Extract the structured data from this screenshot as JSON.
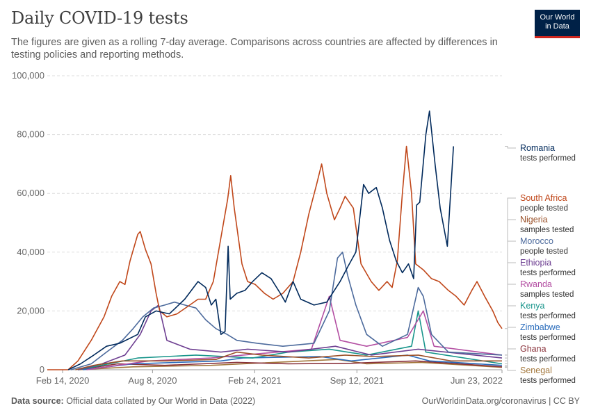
{
  "header": {
    "title": "Daily COVID-19 tests",
    "subtitle": "The figures are given as a rolling 7-day average. Comparisons across countries are affected by differences in testing policies and reporting methods."
  },
  "logo": {
    "line1": "Our World",
    "line2": "in Data",
    "bg_color": "#002147",
    "accent_color": "#ce261e"
  },
  "footer": {
    "source_label": "Data source:",
    "source_text": " Official data collated by Our World in Data (2022)",
    "right_text": "OurWorldinData.org/coronavirus | CC BY"
  },
  "chart_data": {
    "type": "line",
    "title": "Daily COVID-19 tests",
    "ylim": [
      0,
      100000
    ],
    "y_ticks": [
      0,
      20000,
      40000,
      60000,
      80000,
      100000
    ],
    "y_tick_labels": [
      "0",
      "20,000",
      "40,000",
      "60,000",
      "80,000",
      "100,000"
    ],
    "x_range": [
      "2020-01-15",
      "2022-06-23"
    ],
    "x_ticks": [
      {
        "date": "2020-02-14",
        "label": "Feb 14, 2020"
      },
      {
        "date": "2020-08-08",
        "label": "Aug 8, 2020"
      },
      {
        "date": "2021-02-24",
        "label": "Feb 24, 2021"
      },
      {
        "date": "2021-09-12",
        "label": "Sep 12, 2021"
      },
      {
        "date": "2022-06-23",
        "label": "Jun 23, 2022"
      }
    ],
    "series": [
      {
        "name": "Romania",
        "unit": "tests performed",
        "color": "#00295b",
        "points": [
          [
            "2020-02-25",
            0
          ],
          [
            "2020-03-20",
            2000
          ],
          [
            "2020-04-15",
            5000
          ],
          [
            "2020-05-10",
            8000
          ],
          [
            "2020-06-05",
            9000
          ],
          [
            "2020-07-10",
            12000
          ],
          [
            "2020-07-25",
            18000
          ],
          [
            "2020-08-15",
            20000
          ],
          [
            "2020-09-10",
            19000
          ],
          [
            "2020-10-10",
            24000
          ],
          [
            "2020-11-05",
            30000
          ],
          [
            "2020-11-20",
            28000
          ],
          [
            "2020-12-01",
            22000
          ],
          [
            "2020-12-10",
            24000
          ],
          [
            "2020-12-20",
            12000
          ],
          [
            "2020-12-28",
            13000
          ],
          [
            "2021-01-03",
            42000
          ],
          [
            "2021-01-07",
            24000
          ],
          [
            "2021-01-20",
            26000
          ],
          [
            "2021-02-05",
            27000
          ],
          [
            "2021-02-20",
            30000
          ],
          [
            "2021-03-10",
            33000
          ],
          [
            "2021-03-28",
            31000
          ],
          [
            "2021-04-15",
            26000
          ],
          [
            "2021-04-25",
            23000
          ],
          [
            "2021-05-10",
            30000
          ],
          [
            "2021-05-25",
            24000
          ],
          [
            "2021-06-20",
            22000
          ],
          [
            "2021-07-15",
            23000
          ],
          [
            "2021-08-10",
            30000
          ],
          [
            "2021-08-25",
            35000
          ],
          [
            "2021-09-10",
            40000
          ],
          [
            "2021-09-25",
            63000
          ],
          [
            "2021-10-05",
            60000
          ],
          [
            "2021-10-20",
            62000
          ],
          [
            "2021-11-01",
            55000
          ],
          [
            "2021-11-15",
            44000
          ],
          [
            "2021-11-28",
            37000
          ],
          [
            "2021-12-10",
            33000
          ],
          [
            "2021-12-22",
            36000
          ],
          [
            "2022-01-01",
            31000
          ],
          [
            "2022-01-07",
            56000
          ],
          [
            "2022-01-13",
            57000
          ],
          [
            "2022-01-25",
            80000
          ],
          [
            "2022-02-01",
            88000
          ],
          [
            "2022-02-12",
            70000
          ],
          [
            "2022-02-22",
            55000
          ],
          [
            "2022-03-08",
            42000
          ],
          [
            "2022-03-20",
            76000
          ]
        ]
      },
      {
        "name": "South Africa",
        "unit": "people tested",
        "color": "#c0471a",
        "points": [
          [
            "2020-01-15",
            0
          ],
          [
            "2020-02-25",
            0
          ],
          [
            "2020-03-15",
            3000
          ],
          [
            "2020-04-10",
            10000
          ],
          [
            "2020-05-05",
            18000
          ],
          [
            "2020-05-20",
            25000
          ],
          [
            "2020-06-05",
            30000
          ],
          [
            "2020-06-15",
            29000
          ],
          [
            "2020-06-25",
            37000
          ],
          [
            "2020-07-10",
            46000
          ],
          [
            "2020-07-15",
            47000
          ],
          [
            "2020-07-25",
            41000
          ],
          [
            "2020-08-05",
            36000
          ],
          [
            "2020-08-15",
            26000
          ],
          [
            "2020-08-22",
            20000
          ],
          [
            "2020-09-05",
            18000
          ],
          [
            "2020-09-25",
            19000
          ],
          [
            "2020-10-20",
            22000
          ],
          [
            "2020-11-05",
            24000
          ],
          [
            "2020-11-20",
            24000
          ],
          [
            "2020-12-05",
            30000
          ],
          [
            "2020-12-20",
            45000
          ],
          [
            "2021-01-02",
            58000
          ],
          [
            "2021-01-08",
            66000
          ],
          [
            "2021-01-15",
            55000
          ],
          [
            "2021-01-30",
            36000
          ],
          [
            "2021-02-10",
            30000
          ],
          [
            "2021-02-25",
            29000
          ],
          [
            "2021-03-15",
            26000
          ],
          [
            "2021-04-01",
            24000
          ],
          [
            "2021-04-20",
            26000
          ],
          [
            "2021-05-10",
            30000
          ],
          [
            "2021-05-25",
            40000
          ],
          [
            "2021-06-10",
            53000
          ],
          [
            "2021-06-25",
            63000
          ],
          [
            "2021-07-05",
            70000
          ],
          [
            "2021-07-15",
            60000
          ],
          [
            "2021-07-30",
            51000
          ],
          [
            "2021-08-10",
            55000
          ],
          [
            "2021-08-20",
            59000
          ],
          [
            "2021-09-05",
            55000
          ],
          [
            "2021-09-20",
            36000
          ],
          [
            "2021-10-10",
            30000
          ],
          [
            "2021-10-25",
            27000
          ],
          [
            "2021-11-10",
            30000
          ],
          [
            "2021-11-20",
            28000
          ],
          [
            "2021-11-30",
            37000
          ],
          [
            "2021-12-10",
            60000
          ],
          [
            "2021-12-18",
            76000
          ],
          [
            "2021-12-28",
            60000
          ],
          [
            "2022-01-05",
            36000
          ],
          [
            "2022-01-20",
            34000
          ],
          [
            "2022-02-05",
            31000
          ],
          [
            "2022-02-20",
            30000
          ],
          [
            "2022-03-10",
            27000
          ],
          [
            "2022-03-25",
            25000
          ],
          [
            "2022-04-10",
            22000
          ],
          [
            "2022-04-25",
            27000
          ],
          [
            "2022-05-05",
            30000
          ],
          [
            "2022-05-20",
            25000
          ],
          [
            "2022-06-05",
            20000
          ],
          [
            "2022-06-15",
            16000
          ],
          [
            "2022-06-23",
            14000
          ]
        ]
      },
      {
        "name": "Nigeria",
        "unit": "samples tested",
        "color": "#9a5129",
        "points": [
          [
            "2020-03-10",
            0
          ],
          [
            "2020-04-15",
            1500
          ],
          [
            "2020-06-10",
            3000
          ],
          [
            "2020-09-05",
            3000
          ],
          [
            "2020-12-10",
            3500
          ],
          [
            "2021-01-20",
            6000
          ],
          [
            "2021-03-10",
            5000
          ],
          [
            "2021-06-10",
            4000
          ],
          [
            "2021-08-20",
            5000
          ],
          [
            "2021-10-15",
            4500
          ],
          [
            "2022-01-10",
            5000
          ],
          [
            "2022-03-15",
            3000
          ],
          [
            "2022-06-23",
            3000
          ]
        ]
      },
      {
        "name": "Morocco",
        "unit": "people tested",
        "color": "#4c6a9c",
        "points": [
          [
            "2020-03-01",
            0
          ],
          [
            "2020-04-10",
            2000
          ],
          [
            "2020-05-10",
            6000
          ],
          [
            "2020-06-10",
            10000
          ],
          [
            "2020-07-01",
            14000
          ],
          [
            "2020-07-20",
            18000
          ],
          [
            "2020-08-10",
            21000
          ],
          [
            "2020-09-01",
            22000
          ],
          [
            "2020-09-20",
            23000
          ],
          [
            "2020-10-10",
            22000
          ],
          [
            "2020-11-01",
            21000
          ],
          [
            "2020-11-20",
            17000
          ],
          [
            "2020-12-10",
            14000
          ],
          [
            "2021-01-01",
            12000
          ],
          [
            "2021-01-20",
            10000
          ],
          [
            "2021-03-01",
            9000
          ],
          [
            "2021-04-20",
            8000
          ],
          [
            "2021-06-20",
            9000
          ],
          [
            "2021-07-20",
            20000
          ],
          [
            "2021-08-05",
            38000
          ],
          [
            "2021-08-15",
            40000
          ],
          [
            "2021-08-25",
            32000
          ],
          [
            "2021-09-10",
            22000
          ],
          [
            "2021-10-01",
            12000
          ],
          [
            "2021-11-01",
            8000
          ],
          [
            "2021-12-20",
            12000
          ],
          [
            "2022-01-10",
            28000
          ],
          [
            "2022-01-20",
            25000
          ],
          [
            "2022-02-05",
            12000
          ],
          [
            "2022-03-10",
            6000
          ],
          [
            "2022-06-23",
            5000
          ]
        ]
      },
      {
        "name": "Ethiopia",
        "unit": "tests performed",
        "color": "#6d3e91",
        "points": [
          [
            "2020-03-15",
            0
          ],
          [
            "2020-05-01",
            2000
          ],
          [
            "2020-06-15",
            5000
          ],
          [
            "2020-07-15",
            12000
          ],
          [
            "2020-08-05",
            20000
          ],
          [
            "2020-08-20",
            22000
          ],
          [
            "2020-09-05",
            10000
          ],
          [
            "2020-10-20",
            7000
          ],
          [
            "2020-12-20",
            6000
          ],
          [
            "2021-02-10",
            7000
          ],
          [
            "2021-05-01",
            6000
          ],
          [
            "2021-08-01",
            8000
          ],
          [
            "2021-10-10",
            5000
          ],
          [
            "2022-01-10",
            7000
          ],
          [
            "2022-06-23",
            4000
          ]
        ]
      },
      {
        "name": "Rwanda",
        "unit": "samples tested",
        "color": "#b34ea2",
        "points": [
          [
            "2020-04-01",
            0
          ],
          [
            "2020-08-01",
            3000
          ],
          [
            "2020-12-01",
            4000
          ],
          [
            "2021-02-01",
            5000
          ],
          [
            "2021-06-15",
            7000
          ],
          [
            "2021-07-20",
            25000
          ],
          [
            "2021-08-10",
            10000
          ],
          [
            "2021-10-01",
            8000
          ],
          [
            "2021-12-20",
            11000
          ],
          [
            "2022-01-20",
            20000
          ],
          [
            "2022-02-10",
            8000
          ],
          [
            "2022-06-23",
            5000
          ]
        ]
      },
      {
        "name": "Kenya",
        "unit": "tests performed",
        "color": "#18958b",
        "points": [
          [
            "2020-03-15",
            0
          ],
          [
            "2020-05-15",
            2000
          ],
          [
            "2020-07-10",
            4000
          ],
          [
            "2020-11-01",
            5000
          ],
          [
            "2021-02-20",
            4000
          ],
          [
            "2021-05-01",
            6000
          ],
          [
            "2021-07-20",
            7000
          ],
          [
            "2021-10-01",
            5000
          ],
          [
            "2021-12-28",
            8000
          ],
          [
            "2022-01-10",
            20000
          ],
          [
            "2022-01-25",
            6000
          ],
          [
            "2022-06-23",
            2000
          ]
        ]
      },
      {
        "name": "Zimbabwe",
        "unit": "tests performed",
        "color": "#286bbb",
        "points": [
          [
            "2020-03-25",
            0
          ],
          [
            "2020-07-01",
            2000
          ],
          [
            "2020-12-20",
            3000
          ],
          [
            "2021-02-01",
            4000
          ],
          [
            "2021-07-01",
            4500
          ],
          [
            "2021-09-01",
            3000
          ],
          [
            "2021-12-20",
            5000
          ],
          [
            "2022-02-01",
            3000
          ],
          [
            "2022-06-23",
            1500
          ]
        ]
      },
      {
        "name": "Ghana",
        "unit": "tests performed",
        "color": "#883039",
        "points": [
          [
            "2020-03-15",
            0
          ],
          [
            "2020-06-01",
            2000
          ],
          [
            "2020-09-01",
            1500
          ],
          [
            "2021-01-20",
            2500
          ],
          [
            "2021-05-01",
            2000
          ],
          [
            "2021-09-01",
            2200
          ],
          [
            "2022-01-05",
            3000
          ],
          [
            "2022-06-23",
            1000
          ]
        ]
      },
      {
        "name": "Senegal",
        "unit": "tests performed",
        "color": "#a2763a",
        "points": [
          [
            "2020-03-15",
            0
          ],
          [
            "2020-07-01",
            1000
          ],
          [
            "2020-12-01",
            1500
          ],
          [
            "2021-02-01",
            2000
          ],
          [
            "2021-08-05",
            3500
          ],
          [
            "2021-10-01",
            2000
          ],
          [
            "2022-01-15",
            2500
          ],
          [
            "2022-06-23",
            800
          ]
        ]
      }
    ]
  }
}
